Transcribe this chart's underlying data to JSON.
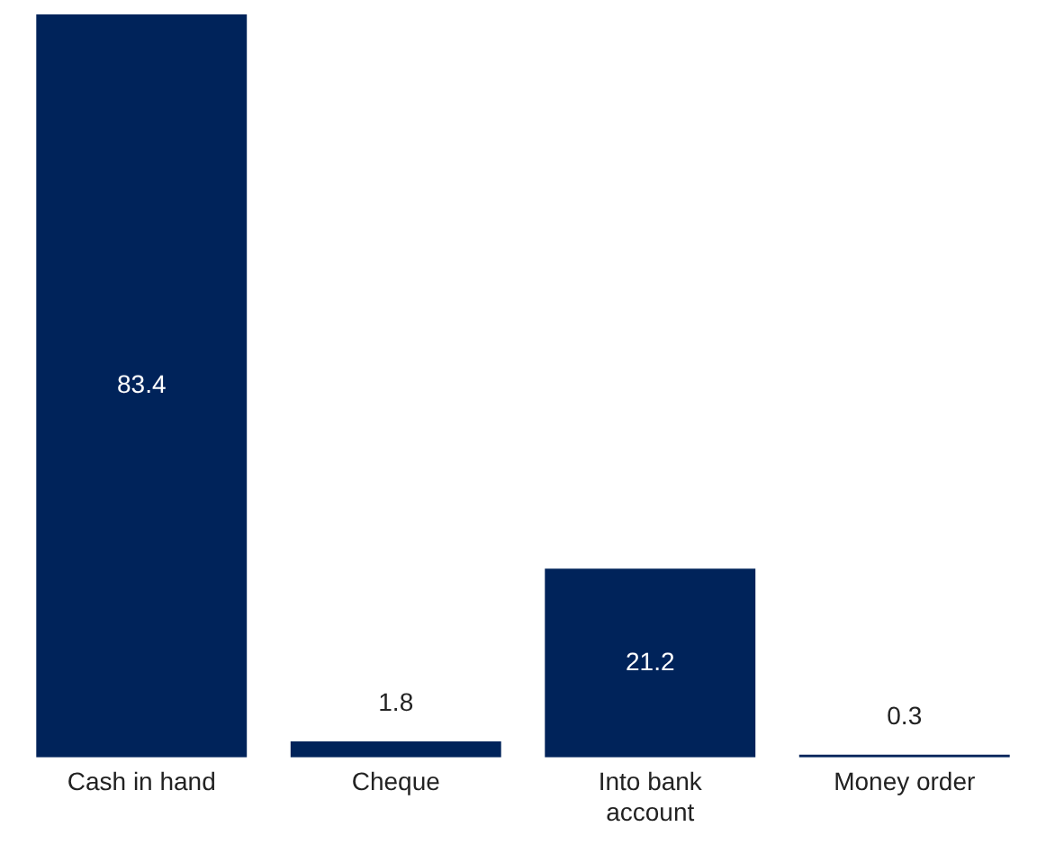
{
  "chart_data": {
    "type": "bar",
    "categories": [
      "Cash in hand",
      "Cheque",
      "Into bank account",
      "Money order"
    ],
    "values": [
      83.4,
      1.8,
      21.2,
      0.3
    ],
    "color": "#00235a",
    "data_labels": true,
    "grid": false,
    "legend": false
  }
}
